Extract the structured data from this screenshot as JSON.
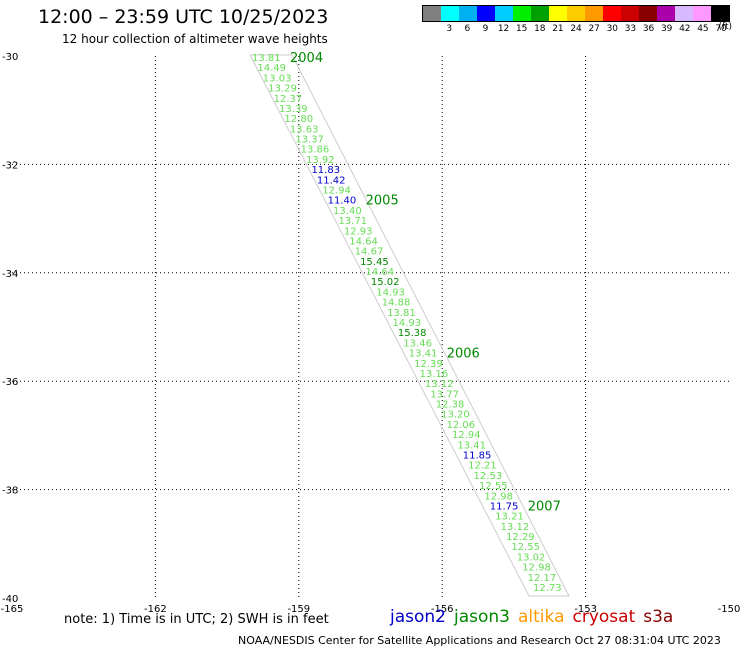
{
  "title": "12:00 – 23:59 UTC 10/25/2023",
  "subtitle": "12 hour collection of altimeter wave heights",
  "colorscale": {
    "colors": [
      "#808080",
      "#00ffff",
      "#00b0f0",
      "#0000ff",
      "#00ccff",
      "#00ee00",
      "#00a000",
      "#ffff00",
      "#ffcc00",
      "#ff9900",
      "#ff0000",
      "#cc0000",
      "#880000",
      "#aa00aa",
      "#d8b8ff",
      "#ff99ff",
      "#000000"
    ],
    "labels": [
      "",
      "3",
      "6",
      "9",
      "12",
      "15",
      "18",
      "21",
      "24",
      "27",
      "30",
      "33",
      "36",
      "39",
      "42",
      "45",
      "70"
    ],
    "unit": "(ft)"
  },
  "map": {
    "lon_ticks": [
      "-165",
      "-162",
      "-159",
      "-156",
      "-153",
      "-150"
    ],
    "lat_ticks": [
      "-30",
      "-32",
      "-34",
      "-36",
      "-38",
      "-40"
    ],
    "lon_range": [
      -165,
      -150
    ],
    "lat_range": [
      -40,
      -30
    ]
  },
  "track": {
    "color": "#66dd55",
    "colors": {
      "jason3": "#66dd55",
      "jason2": "#0000cc",
      "jason3_bold": "#008800"
    },
    "points": [
      {
        "v": "13.81",
        "c": "jason3"
      },
      {
        "v": "14.49",
        "c": "jason3"
      },
      {
        "v": "13.03",
        "c": "jason3"
      },
      {
        "v": "13.29",
        "c": "jason3"
      },
      {
        "v": "12.37",
        "c": "jason3"
      },
      {
        "v": "13.39",
        "c": "jason3"
      },
      {
        "v": "12.80",
        "c": "jason3"
      },
      {
        "v": "13.63",
        "c": "jason3"
      },
      {
        "v": "13.37",
        "c": "jason3"
      },
      {
        "v": "13.86",
        "c": "jason3"
      },
      {
        "v": "13.92",
        "c": "jason3"
      },
      {
        "v": "11.83",
        "c": "jason2"
      },
      {
        "v": "11.42",
        "c": "jason2"
      },
      {
        "v": "12.94",
        "c": "jason3"
      },
      {
        "v": "11.40",
        "c": "jason2"
      },
      {
        "v": "13.40",
        "c": "jason3"
      },
      {
        "v": "13.71",
        "c": "jason3"
      },
      {
        "v": "12.93",
        "c": "jason3"
      },
      {
        "v": "14.64",
        "c": "jason3"
      },
      {
        "v": "14.67",
        "c": "jason3"
      },
      {
        "v": "15.45",
        "c": "jason3_bold"
      },
      {
        "v": "14.64",
        "c": "jason3"
      },
      {
        "v": "15.02",
        "c": "jason3_bold"
      },
      {
        "v": "14.93",
        "c": "jason3"
      },
      {
        "v": "14.88",
        "c": "jason3"
      },
      {
        "v": "13.81",
        "c": "jason3"
      },
      {
        "v": "14.93",
        "c": "jason3"
      },
      {
        "v": "15.38",
        "c": "jason3_bold"
      },
      {
        "v": "13.46",
        "c": "jason3"
      },
      {
        "v": "13.41",
        "c": "jason3"
      },
      {
        "v": "12.39",
        "c": "jason3"
      },
      {
        "v": "13.16",
        "c": "jason3"
      },
      {
        "v": "13.12",
        "c": "jason3"
      },
      {
        "v": "13.77",
        "c": "jason3"
      },
      {
        "v": "12.38",
        "c": "jason3"
      },
      {
        "v": "13.20",
        "c": "jason3"
      },
      {
        "v": "12.06",
        "c": "jason3"
      },
      {
        "v": "12.94",
        "c": "jason3"
      },
      {
        "v": "13.41",
        "c": "jason3"
      },
      {
        "v": "11.85",
        "c": "jason2"
      },
      {
        "v": "12.21",
        "c": "jason3"
      },
      {
        "v": "12.53",
        "c": "jason3"
      },
      {
        "v": "12.55",
        "c": "jason3"
      },
      {
        "v": "12.98",
        "c": "jason3"
      },
      {
        "v": "11.75",
        "c": "jason2"
      },
      {
        "v": "13.21",
        "c": "jason3"
      },
      {
        "v": "13.12",
        "c": "jason3"
      },
      {
        "v": "12.29",
        "c": "jason3"
      },
      {
        "v": "12.55",
        "c": "jason3"
      },
      {
        "v": "13.02",
        "c": "jason3"
      },
      {
        "v": "12.98",
        "c": "jason3"
      },
      {
        "v": "12.17",
        "c": "jason3"
      },
      {
        "v": "12.73",
        "c": "jason3"
      }
    ],
    "time_labels": [
      {
        "text": "2004",
        "index": 0
      },
      {
        "text": "2005",
        "index": 14
      },
      {
        "text": "2006",
        "index": 29
      },
      {
        "text": "2007",
        "index": 44
      }
    ]
  },
  "note": "note: 1) Time is in UTC; 2) SWH is in feet",
  "legend": [
    {
      "name": "jason2",
      "color": "#0000cc"
    },
    {
      "name": "jason3",
      "color": "#008800"
    },
    {
      "name": "altika",
      "color": "#ff9900"
    },
    {
      "name": "cryosat",
      "color": "#cc0000"
    },
    {
      "name": "s3a",
      "color": "#880000"
    }
  ],
  "footer": "NOAA/NESDIS Center for Satellite Applications and Research    Oct 27 08:31:04 UTC 2023"
}
